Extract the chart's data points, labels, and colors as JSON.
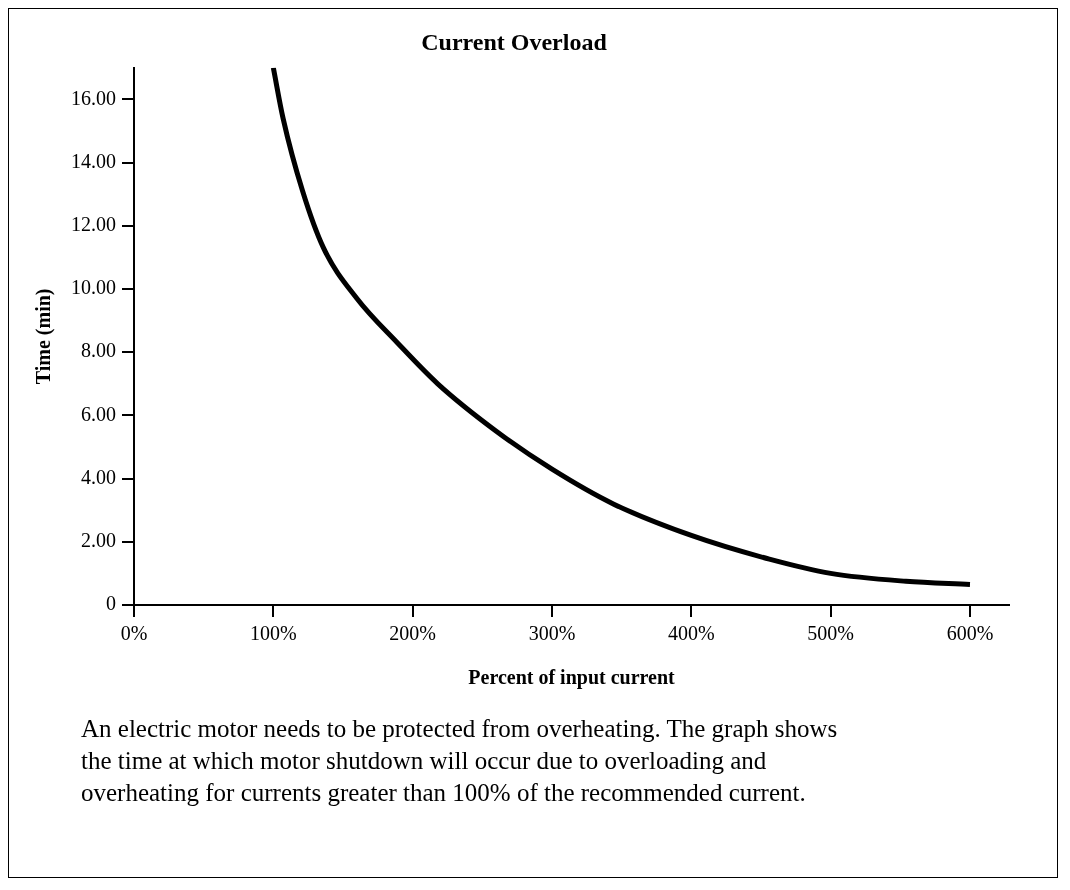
{
  "chart_data": {
    "type": "line",
    "title": "Current Overload",
    "xlabel": "Percent of input current",
    "ylabel": "Time (min)",
    "x": [
      100,
      107,
      121,
      136,
      160,
      189,
      218,
      260,
      300,
      344,
      400,
      456,
      500,
      554,
      600
    ],
    "series": [
      {
        "color": "#000000",
        "values": [
          17.0,
          15.4,
          13.1,
          11.3,
          9.7,
          8.3,
          7.0,
          5.5,
          4.3,
          3.2,
          2.2,
          1.45,
          1.0,
          0.75,
          0.65
        ]
      }
    ],
    "xlim": [
      0,
      628
    ],
    "ylim": [
      0,
      17
    ],
    "xticks": [
      {
        "value": 0,
        "label": "0%"
      },
      {
        "value": 100,
        "label": "100%"
      },
      {
        "value": 200,
        "label": "200%"
      },
      {
        "value": 300,
        "label": "300%"
      },
      {
        "value": 400,
        "label": "400%"
      },
      {
        "value": 500,
        "label": "500%"
      },
      {
        "value": 600,
        "label": "600%"
      }
    ],
    "yticks": [
      0,
      {
        "value": 2,
        "label": "2.00"
      },
      {
        "value": 4,
        "label": "4.00"
      },
      {
        "value": 6,
        "label": "6.00"
      },
      {
        "value": 8,
        "label": "8.00"
      },
      {
        "value": 10,
        "label": "10.00"
      },
      {
        "value": 12,
        "label": "12.00"
      },
      {
        "value": 14,
        "label": "14.00"
      },
      {
        "value": 16,
        "label": "16.00"
      }
    ],
    "grid": false,
    "legend": false,
    "annotations": [
      "An electric motor needs to be protected from overheating.  The graph shows the time at which motor shutdown will occur due to overloading and overheating for currents greater than 100% of the recommended current."
    ]
  }
}
